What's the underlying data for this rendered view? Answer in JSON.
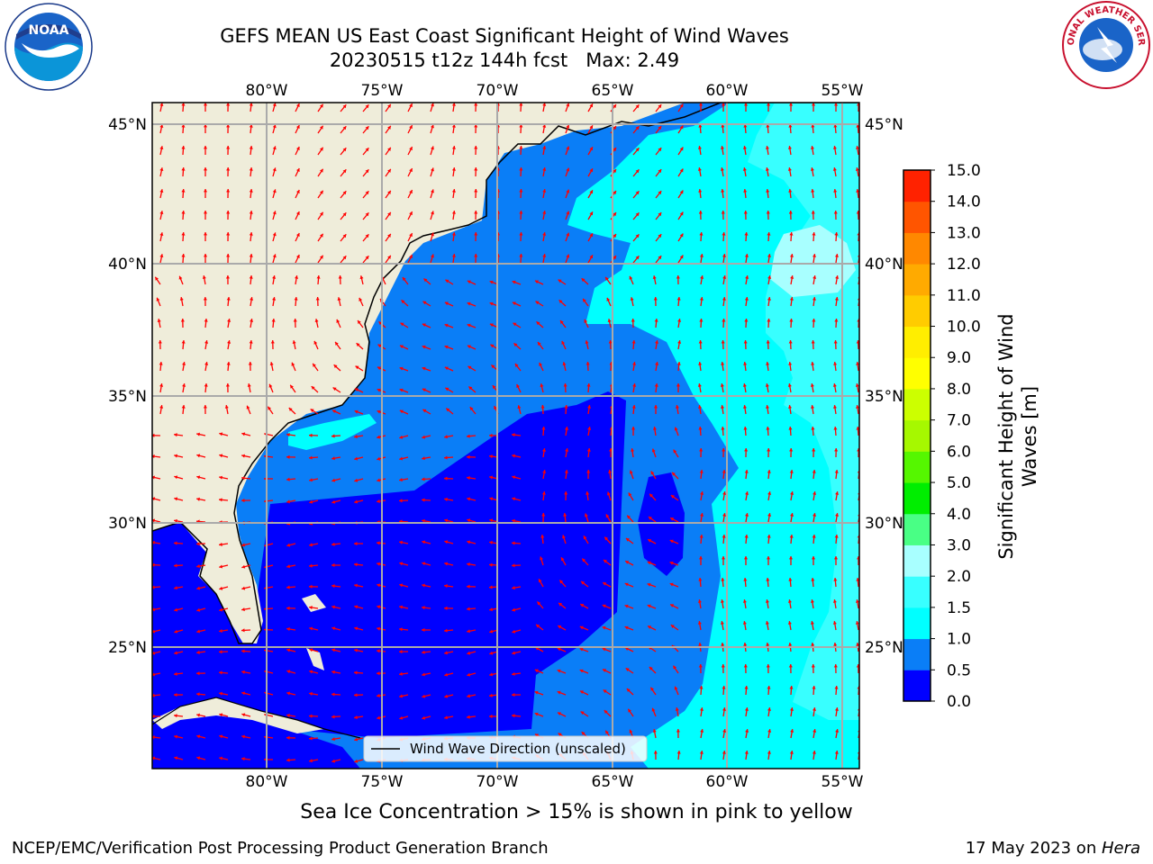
{
  "title": {
    "line1": "GEFS MEAN US East Coast Significant Height of Wind Waves",
    "line2": "20230515 t12z 144h fcst   Max: 2.49"
  },
  "map": {
    "lon_ticks_top": [
      "80°W",
      "75°W",
      "70°W",
      "65°W",
      "60°W",
      "55°W"
    ],
    "lon_ticks_bottom": [
      "80°W",
      "75°W",
      "70°W",
      "65°W",
      "60°W",
      "55°W"
    ],
    "lat_ticks_left": [
      "45°N",
      "40°N",
      "35°N",
      "30°N",
      "25°N"
    ],
    "lat_ticks_right": [
      "45°N",
      "40°N",
      "35°N",
      "30°N",
      "25°N"
    ],
    "legend_label": "Wind Wave Direction (unscaled)",
    "arrow_color": "#ff0000",
    "land_color": "#efedda"
  },
  "colorbar": {
    "title": "Significant Height of Wind Waves [m]",
    "levels": [
      "0.0",
      "0.5",
      "1.0",
      "1.5",
      "2.0",
      "3.0",
      "4.0",
      "5.0",
      "6.0",
      "7.0",
      "8.0",
      "9.0",
      "10.0",
      "11.0",
      "12.0",
      "13.0",
      "14.0",
      "15.0"
    ],
    "colors": [
      "#0000ff",
      "#0a7ef7",
      "#00ffff",
      "#38ffff",
      "#a8ffff",
      "#49ff85",
      "#00ee00",
      "#55f700",
      "#a6f800",
      "#ccff00",
      "#ffff00",
      "#ffee00",
      "#ffcc00",
      "#ffaa00",
      "#ff8800",
      "#ff5500",
      "#ff2200"
    ]
  },
  "seaice_note": "Sea Ice Concentration > 15% is shown in pink to yellow",
  "footer": {
    "left": "NCEP/EMC/Verification Post Processing Product Generation Branch",
    "date": "17 May 2023 on ",
    "machine": "Hera"
  },
  "logos": {
    "noaa": "NOAA",
    "nws_text": "NATIONAL WEATHER SERVICE"
  }
}
